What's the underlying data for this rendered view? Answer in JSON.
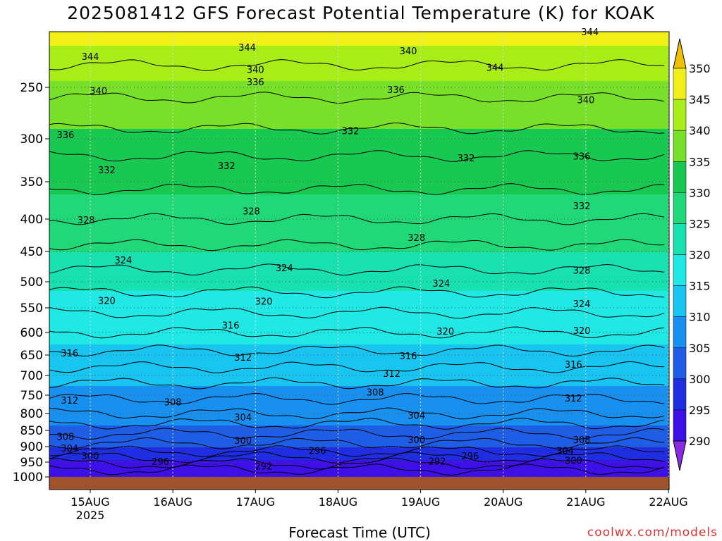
{
  "title": "2025081412 GFS Forecast Potential Temperature (K) for KOAK",
  "footer": "coolwx.com/models",
  "chart_data": {
    "type": "contour",
    "title": "2025081412 GFS Forecast Potential Temperature (K) for KOAK",
    "xlabel": "Forecast Time (UTC)",
    "x_ticks": [
      {
        "label": "15AUG",
        "sublabel": "2025",
        "day": 15
      },
      {
        "label": "16AUG",
        "day": 16
      },
      {
        "label": "17AUG",
        "day": 17
      },
      {
        "label": "18AUG",
        "day": 18
      },
      {
        "label": "19AUG",
        "day": 19
      },
      {
        "label": "20AUG",
        "day": 20
      },
      {
        "label": "21AUG",
        "day": 21
      },
      {
        "label": "22AUG",
        "day": 22
      }
    ],
    "xlim_days": [
      14.5,
      22.0
    ],
    "y_ticks": [
      250,
      300,
      350,
      400,
      450,
      500,
      550,
      600,
      650,
      700,
      750,
      800,
      850,
      900,
      950,
      1000
    ],
    "ylim": [
      200,
      1000
    ],
    "colorbar": {
      "levels": [
        290,
        295,
        300,
        305,
        310,
        315,
        320,
        325,
        330,
        335,
        340,
        345,
        350
      ],
      "colors": [
        "#8a2be2",
        "#3d10e8",
        "#1f2ee0",
        "#1e5ee6",
        "#1890f0",
        "#18c4f0",
        "#20e8e4",
        "#18e0b0",
        "#20d878",
        "#18c850",
        "#78e028",
        "#a8ec18",
        "#f0f018",
        "#f0c000"
      ]
    },
    "contour_labels": [
      {
        "value": "344",
        "day": 15.0,
        "p": 222
      },
      {
        "value": "344",
        "day": 16.9,
        "p": 214
      },
      {
        "value": "340",
        "day": 18.85,
        "p": 217
      },
      {
        "value": "344",
        "day": 19.9,
        "p": 232
      },
      {
        "value": "344",
        "day": 21.05,
        "p": 198
      },
      {
        "value": "340",
        "day": 17.0,
        "p": 234
      },
      {
        "value": "336",
        "day": 17.0,
        "p": 245
      },
      {
        "value": "340",
        "day": 15.1,
        "p": 253
      },
      {
        "value": "336",
        "day": 18.7,
        "p": 252
      },
      {
        "value": "340",
        "day": 21.0,
        "p": 262
      },
      {
        "value": "336",
        "day": 14.7,
        "p": 296
      },
      {
        "value": "332",
        "day": 18.15,
        "p": 292
      },
      {
        "value": "336",
        "day": 20.95,
        "p": 320
      },
      {
        "value": "332",
        "day": 15.2,
        "p": 336
      },
      {
        "value": "332",
        "day": 16.65,
        "p": 331
      },
      {
        "value": "332",
        "day": 19.55,
        "p": 322
      },
      {
        "value": "328",
        "day": 16.95,
        "p": 389
      },
      {
        "value": "332",
        "day": 20.95,
        "p": 382
      },
      {
        "value": "328",
        "day": 14.95,
        "p": 401
      },
      {
        "value": "328",
        "day": 18.95,
        "p": 428
      },
      {
        "value": "324",
        "day": 15.4,
        "p": 464
      },
      {
        "value": "324",
        "day": 17.35,
        "p": 477
      },
      {
        "value": "328",
        "day": 20.95,
        "p": 481
      },
      {
        "value": "324",
        "day": 19.25,
        "p": 503
      },
      {
        "value": "320",
        "day": 15.2,
        "p": 536
      },
      {
        "value": "320",
        "day": 17.1,
        "p": 537
      },
      {
        "value": "324",
        "day": 20.95,
        "p": 542
      },
      {
        "value": "316",
        "day": 16.7,
        "p": 585
      },
      {
        "value": "320",
        "day": 19.3,
        "p": 597
      },
      {
        "value": "320",
        "day": 20.95,
        "p": 596
      },
      {
        "value": "316",
        "day": 14.75,
        "p": 645
      },
      {
        "value": "312",
        "day": 16.85,
        "p": 655
      },
      {
        "value": "316",
        "day": 18.85,
        "p": 652
      },
      {
        "value": "316",
        "day": 20.85,
        "p": 672
      },
      {
        "value": "312",
        "day": 18.65,
        "p": 695
      },
      {
        "value": "308",
        "day": 18.45,
        "p": 742
      },
      {
        "value": "312",
        "day": 14.75,
        "p": 763
      },
      {
        "value": "308",
        "day": 16.0,
        "p": 768
      },
      {
        "value": "312",
        "day": 20.85,
        "p": 758
      },
      {
        "value": "304",
        "day": 16.85,
        "p": 810
      },
      {
        "value": "304",
        "day": 18.95,
        "p": 805
      },
      {
        "value": "308",
        "day": 14.7,
        "p": 868
      },
      {
        "value": "300",
        "day": 16.85,
        "p": 880
      },
      {
        "value": "308",
        "day": 20.95,
        "p": 878
      },
      {
        "value": "304",
        "day": 14.75,
        "p": 905
      },
      {
        "value": "300",
        "day": 18.95,
        "p": 878
      },
      {
        "value": "296",
        "day": 17.75,
        "p": 913
      },
      {
        "value": "304",
        "day": 20.75,
        "p": 913
      },
      {
        "value": "300",
        "day": 15.0,
        "p": 930
      },
      {
        "value": "296",
        "day": 15.85,
        "p": 948
      },
      {
        "value": "292",
        "day": 17.1,
        "p": 963
      },
      {
        "value": "292",
        "day": 19.2,
        "p": 947
      },
      {
        "value": "296",
        "day": 19.6,
        "p": 930
      },
      {
        "value": "300",
        "day": 20.85,
        "p": 944
      }
    ]
  }
}
